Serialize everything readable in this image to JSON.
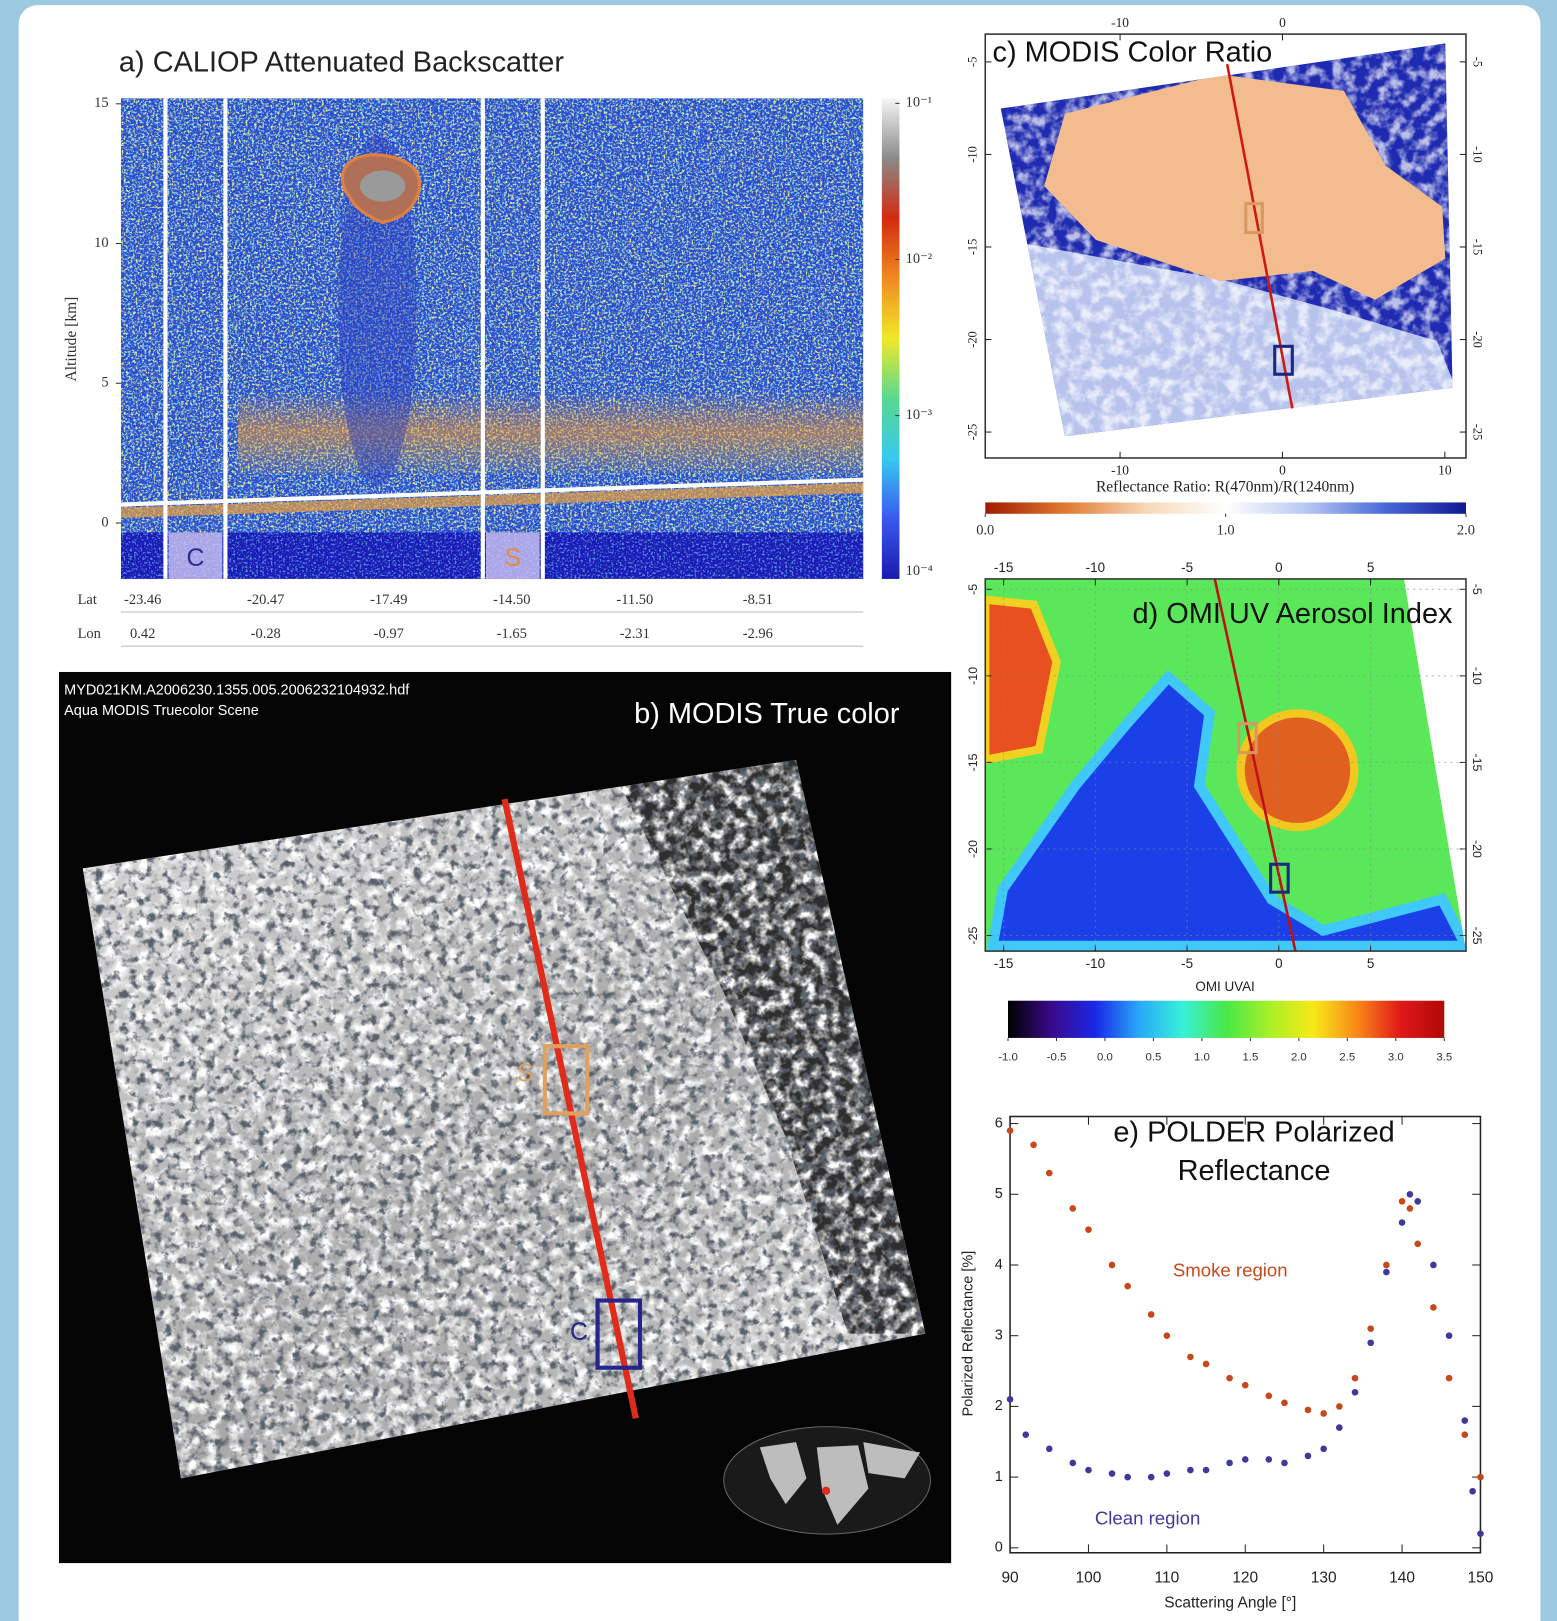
{
  "chart_data": [
    {
      "type": "heatmap",
      "title": "a) CALIOP Attenuated Backscatter",
      "ylabel": "Altitude [km]",
      "ylim": [
        -2,
        15.2
      ],
      "yticks": [
        0,
        5,
        10,
        15
      ],
      "colorbar": {
        "log": true,
        "lim": [
          0.0001,
          0.1
        ],
        "colors": [
          "#f6f6f6",
          "#8a8a8a",
          "#d42a10",
          "#f08a20",
          "#f0e828",
          "#58d890",
          "#38c8f0",
          "#3a58f0",
          "#1a1ab0"
        ],
        "ticks": [
          {
            "value": 0.1,
            "label": "10⁻¹"
          },
          {
            "value": 0.01,
            "label": "10⁻²"
          },
          {
            "value": 0.001,
            "label": "10⁻³"
          },
          {
            "value": 0.0001,
            "label": "10⁻⁴"
          }
        ]
      },
      "lat": {
        "label": "Lat",
        "values": [
          -23.46,
          -20.47,
          -17.49,
          -14.5,
          -11.5,
          -8.51
        ],
        "value_labels": [
          "-23.46",
          "-20.47",
          "-17.49",
          "-14.50",
          "-11.50",
          "-8.51"
        ]
      },
      "lon": {
        "label": "Lon",
        "values": [
          0.42,
          -0.28,
          -0.97,
          -1.65,
          -2.31,
          -2.96
        ]
      },
      "markers": [
        {
          "text": "C",
          "color": "#2b2b8c"
        },
        {
          "text": "S",
          "color": "#e08a40"
        }
      ]
    },
    {
      "type": "image",
      "title": "b) MODIS True color",
      "file": "MYD021KM.A2006230.1355.005.2006232104932.hdf",
      "scene": "Aqua MODIS Truecolor Scene",
      "markers": [
        {
          "text": "S",
          "color": "#e0a060"
        },
        {
          "text": "C",
          "color": "#24248a"
        }
      ],
      "track_color": "#e02a1a"
    },
    {
      "type": "map",
      "title": "c) MODIS Color Ratio",
      "xlabel": "Reflectance Ratio: R(470nm)/R(1240nm)",
      "xlim": [
        -18.3,
        11.3
      ],
      "ylim": [
        -26.4,
        -3.5
      ],
      "xticks": [
        -10,
        0,
        10
      ],
      "xticks_top": [
        -10,
        0
      ],
      "yticks": [
        -5,
        -10,
        -15,
        -20,
        -25
      ],
      "grid": false,
      "colorbar": {
        "lim": [
          0,
          2
        ],
        "colors": [
          "#a01a00",
          "#e07a30",
          "#f6d8b8",
          "#ffffff",
          "#b8c8f4",
          "#4868d8",
          "#101890"
        ],
        "ticks": [
          {
            "value": 0,
            "label": "0.0"
          },
          {
            "value": 1,
            "label": "1.0"
          },
          {
            "value": 2,
            "label": "2.0"
          }
        ]
      }
    },
    {
      "type": "map",
      "title": "d) OMI UV Aerosol Index",
      "xlabel": "OMI UVAI",
      "xlim": [
        -16.0,
        10.2
      ],
      "ylim": [
        -25.9,
        -4.4
      ],
      "xticks": [
        -15,
        -10,
        -5,
        0,
        5
      ],
      "xticks_top": [
        -15,
        -10,
        -5,
        0,
        5
      ],
      "yticks": [
        -5,
        -10,
        -15,
        -20,
        -25
      ],
      "grid": true,
      "colorbar": {
        "lim": [
          -1,
          3.5
        ],
        "colors": [
          "#000000",
          "#3a0a8a",
          "#1a28e8",
          "#28a8f8",
          "#38f0d8",
          "#48e848",
          "#a8f028",
          "#f8e818",
          "#f88818",
          "#e01818",
          "#b00808"
        ],
        "ticks": [
          {
            "value": -1,
            "label": "-1.0"
          },
          {
            "value": -0.5,
            "label": "-0.5"
          },
          {
            "value": 0,
            "label": "0.0"
          },
          {
            "value": 0.5,
            "label": "0.5"
          },
          {
            "value": 1,
            "label": "1.0"
          },
          {
            "value": 1.5,
            "label": "1.5"
          },
          {
            "value": 2,
            "label": "2.0"
          },
          {
            "value": 2.5,
            "label": "2.5"
          },
          {
            "value": 3,
            "label": "3.0"
          },
          {
            "value": 3.5,
            "label": "3.5"
          }
        ]
      }
    },
    {
      "type": "scatter",
      "title": [
        "e) POLDER Polarized",
        "Reflectance"
      ],
      "xlabel": "Scattering Angle [°]",
      "ylabel": "Polarized Reflectance [%]",
      "xlim": [
        90,
        150
      ],
      "ylim": [
        -0.07,
        6.1
      ],
      "xticks": [
        90,
        100,
        110,
        120,
        130,
        140,
        150
      ],
      "yticks": [
        0,
        1,
        2,
        3,
        4,
        5,
        6
      ],
      "series": [
        {
          "name": "Smoke region",
          "color": "#c8481c",
          "x": [
            90,
            93,
            95,
            98,
            100,
            103,
            105,
            108,
            110,
            113,
            115,
            118,
            120,
            123,
            125,
            128,
            130,
            132,
            134,
            136,
            138,
            140,
            141,
            142,
            144,
            146,
            148,
            150
          ],
          "values": [
            5.9,
            5.7,
            5.3,
            4.8,
            4.5,
            4.0,
            3.7,
            3.3,
            3.0,
            2.7,
            2.6,
            2.4,
            2.3,
            2.15,
            2.05,
            1.95,
            1.9,
            2.0,
            2.4,
            3.1,
            4.0,
            4.9,
            4.8,
            4.3,
            3.4,
            2.4,
            1.6,
            1.0
          ]
        },
        {
          "name": "Clean region",
          "color": "#3e3a9c",
          "x": [
            90,
            92,
            95,
            98,
            100,
            103,
            105,
            108,
            110,
            113,
            115,
            118,
            120,
            123,
            125,
            128,
            130,
            132,
            134,
            136,
            138,
            140,
            141,
            142,
            144,
            146,
            148,
            149,
            150
          ],
          "values": [
            2.1,
            1.6,
            1.4,
            1.2,
            1.1,
            1.05,
            1.0,
            1.0,
            1.05,
            1.1,
            1.1,
            1.2,
            1.25,
            1.25,
            1.2,
            1.3,
            1.4,
            1.7,
            2.2,
            2.9,
            3.9,
            4.6,
            5.0,
            4.9,
            4.0,
            3.0,
            1.8,
            0.8,
            0.2
          ]
        }
      ]
    }
  ]
}
